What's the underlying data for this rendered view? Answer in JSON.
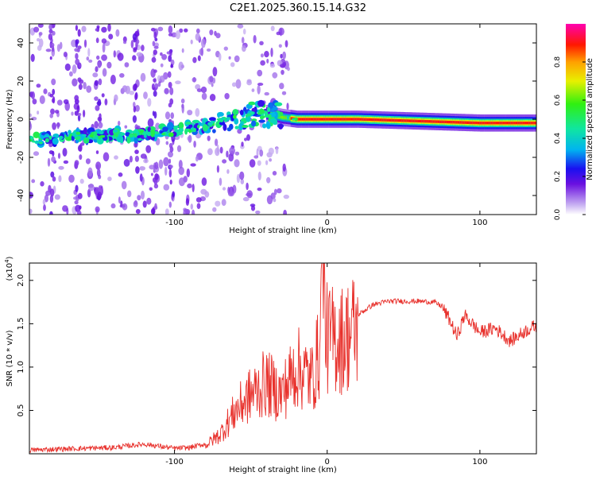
{
  "title": "C2E1.2025.360.15.14.G32",
  "colors": {
    "snr_line": "#e8312c",
    "axis": "#000000"
  },
  "chart_data": [
    {
      "type": "heatmap",
      "name": "spectrogram",
      "xlabel": "Height of straight line (km)",
      "ylabel": "Frequency (Hz)",
      "xlim": [
        -195,
        137
      ],
      "ylim": [
        -50,
        50
      ],
      "x_ticks": [
        -100,
        0,
        100
      ],
      "x_tick_labels": [
        "-100",
        "0",
        "100"
      ],
      "y_ticks": [
        -40,
        -20,
        0,
        20,
        40
      ],
      "y_tick_labels": [
        "-40",
        "-20",
        "0",
        "20",
        "40"
      ],
      "ridge": {
        "x": [
          -195,
          -180,
          -160,
          -140,
          -120,
          -100,
          -80,
          -60,
          -50,
          -40,
          -30,
          -20,
          0,
          20,
          60,
          100,
          137
        ],
        "frequency": [
          -11,
          -10,
          -9,
          -8,
          -8,
          -6,
          -3,
          0,
          2,
          3,
          1,
          0,
          0,
          0,
          -1,
          -2,
          -2
        ]
      },
      "colorbar": {
        "label": "Normalized spectral amplitude",
        "ticks": [
          0.0,
          0.2,
          0.4,
          0.6,
          0.8
        ],
        "tick_labels": [
          "0.0",
          "0.2",
          "0.4",
          "0.6",
          "0.8"
        ],
        "range": [
          0,
          1
        ]
      }
    },
    {
      "type": "line",
      "name": "snr",
      "xlabel": "Height of straight line (km)",
      "ylabel": "SNR (10 * v/v)",
      "scale_label": "(x10",
      "scale_exponent": "4",
      "scale_suffix": ")",
      "xlim": [
        -195,
        137
      ],
      "ylim": [
        0,
        2.2
      ],
      "x_ticks": [
        -100,
        0,
        100
      ],
      "x_tick_labels": [
        "-100",
        "0",
        "100"
      ],
      "y_ticks": [
        0.5,
        1.0,
        1.5,
        2.0
      ],
      "y_tick_labels": [
        "0.5",
        "1.0",
        "1.5",
        "2.0"
      ],
      "series": [
        {
          "name": "SNR",
          "x": [
            -195,
            -180,
            -160,
            -140,
            -120,
            -100,
            -90,
            -80,
            -70,
            -65,
            -60,
            -50,
            -40,
            -30,
            -20,
            -10,
            -5,
            -3,
            0,
            10,
            20,
            30,
            40,
            50,
            60,
            70,
            75,
            80,
            85,
            90,
            100,
            110,
            120,
            130,
            137
          ],
          "y": [
            0.03,
            0.04,
            0.05,
            0.06,
            0.1,
            0.05,
            0.06,
            0.1,
            0.25,
            0.4,
            0.55,
            0.75,
            0.9,
            0.75,
            1.1,
            0.95,
            1.3,
            2.15,
            1.45,
            1.45,
            1.6,
            1.72,
            1.76,
            1.76,
            1.76,
            1.75,
            1.7,
            1.55,
            1.35,
            1.6,
            1.4,
            1.45,
            1.3,
            1.42,
            1.48
          ]
        }
      ]
    }
  ]
}
